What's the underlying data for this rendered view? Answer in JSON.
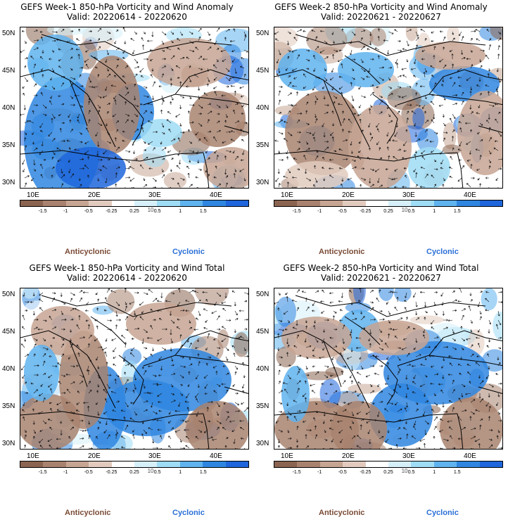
{
  "panels": [
    {
      "title1": "GEFS Week-1 850-hPa Vorticity and Wind Anomaly",
      "title2": "Valid: 20220614 - 20220620"
    },
    {
      "title1": "GEFS Week-2 850-hPa Vorticity and Wind Anomaly",
      "title2": "Valid: 20220621 - 20220627"
    },
    {
      "title1": "GEFS Week-1 850-hPa Vorticity and Wind Total",
      "title2": "Valid: 20220614 - 20220620"
    },
    {
      "title1": "GEFS Week-2 850-hPa Vorticity and Wind Total",
      "title2": "Valid: 20220621 - 20220627"
    }
  ],
  "lat_labels": [
    "50N",
    "45N",
    "40N",
    "35N",
    "30N"
  ],
  "lon_labels": [
    "10E",
    "20E",
    "30E",
    "40E"
  ],
  "colorbar": {
    "labels": [
      "-1.5",
      "-1",
      "-0.5",
      "-0.25",
      "0.25",
      "0.5",
      "1",
      "1.5"
    ],
    "scale_note": "10",
    "colors": [
      "#8a6450",
      "#a8826e",
      "#c7a593",
      "#e2cbbe",
      "#ffffff",
      "#d6f0fa",
      "#9fdcf5",
      "#5fb3ee",
      "#2f86e0",
      "#1f66dc"
    ]
  },
  "legend": {
    "anticyclonic": "Anticyclonic",
    "cyclonic": "Cyclonic"
  },
  "colors": {
    "anticyclonic": "#7a4a35",
    "cyclonic": "#2a6fd6"
  }
}
